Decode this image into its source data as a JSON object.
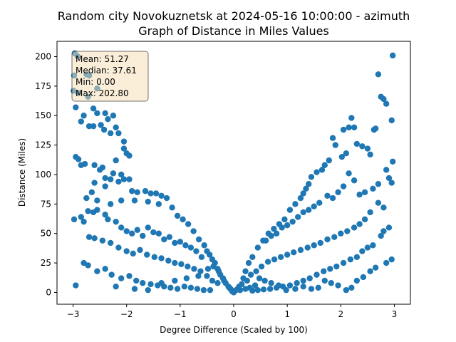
{
  "chart_data": {
    "type": "scatter",
    "title_line1": "Random city Novokuznetsk at 2024-05-16 10:00:00  - azimuth",
    "title_line2": "Graph of Distance in Miles Values",
    "xlabel": "Degree Difference (Scaled by 100)",
    "ylabel": "Distance (Miles)",
    "xlim": [
      -3.3,
      3.3
    ],
    "ylim": [
      -10,
      213
    ],
    "xticks": [
      -3,
      -2,
      -1,
      0,
      1,
      2,
      3
    ],
    "yticks": [
      0,
      25,
      50,
      75,
      100,
      125,
      150,
      175,
      200
    ],
    "point_color": "#1f77b4",
    "stats": {
      "mean": "Mean: 51.27",
      "median": "Median: 37.61",
      "min": "Min: 0.00",
      "max": "Max: 202.80"
    },
    "points": [
      [
        -2.97,
        202.8
      ],
      [
        -2.92,
        200.5
      ],
      [
        -2.98,
        184
      ],
      [
        -2.75,
        185
      ],
      [
        -2.7,
        184
      ],
      [
        -2.55,
        173
      ],
      [
        -2.99,
        171
      ],
      [
        -2.9,
        169
      ],
      [
        -2.72,
        166
      ],
      [
        -2.62,
        156
      ],
      [
        -2.55,
        152
      ],
      [
        -2.4,
        152
      ],
      [
        -2.25,
        150
      ],
      [
        -2.35,
        147
      ],
      [
        -2.85,
        145
      ],
      [
        -2.7,
        141
      ],
      [
        -2.62,
        141
      ],
      [
        -2.42,
        138
      ],
      [
        -2.3,
        135
      ],
      [
        -2.15,
        135
      ],
      [
        -2.05,
        128
      ],
      [
        -2.05,
        122
      ],
      [
        -1.95,
        116
      ],
      [
        -2.95,
        157
      ],
      [
        -2.8,
        150
      ],
      [
        -2.48,
        142
      ],
      [
        -2.2,
        140
      ],
      [
        -2.0,
        118
      ],
      [
        -2.9,
        113
      ],
      [
        -2.95,
        115
      ],
      [
        -2.78,
        109
      ],
      [
        -2.85,
        108
      ],
      [
        -2.6,
        108
      ],
      [
        -2.45,
        106
      ],
      [
        -2.2,
        112
      ],
      [
        -2.5,
        104
      ],
      [
        -2.25,
        101
      ],
      [
        -2.1,
        100
      ],
      [
        -1.95,
        96
      ],
      [
        -2.4,
        97
      ],
      [
        -2.3,
        96
      ],
      [
        -2.6,
        93
      ],
      [
        -2.65,
        85
      ],
      [
        -2.4,
        90
      ],
      [
        -2.15,
        94
      ],
      [
        -2.05,
        96
      ],
      [
        -1.9,
        86
      ],
      [
        -1.8,
        85
      ],
      [
        -1.65,
        86
      ],
      [
        -1.55,
        84
      ],
      [
        -1.45,
        84
      ],
      [
        -1.35,
        82
      ],
      [
        -1.25,
        80
      ],
      [
        -2.75,
        80
      ],
      [
        -2.55,
        78
      ],
      [
        -2.3,
        75
      ],
      [
        -2.1,
        78
      ],
      [
        -1.85,
        78
      ],
      [
        -1.6,
        77
      ],
      [
        -1.4,
        75
      ],
      [
        -1.15,
        72
      ],
      [
        -1.05,
        65
      ],
      [
        -0.95,
        62
      ],
      [
        -0.85,
        58
      ],
      [
        -0.75,
        52
      ],
      [
        -0.65,
        45
      ],
      [
        -0.55,
        40
      ],
      [
        -0.5,
        35
      ],
      [
        -0.45,
        32
      ],
      [
        -0.4,
        28
      ],
      [
        -0.35,
        25
      ],
      [
        -0.3,
        20
      ],
      [
        -0.25,
        15
      ],
      [
        -0.2,
        12
      ],
      [
        -0.15,
        8
      ],
      [
        -0.1,
        5
      ],
      [
        -0.06,
        3
      ],
      [
        -0.03,
        1
      ],
      [
        0.0,
        0
      ],
      [
        0.03,
        1.5
      ],
      [
        0.06,
        2.5
      ],
      [
        0.1,
        5
      ],
      [
        0.15,
        7
      ],
      [
        -2.98,
        62
      ],
      [
        -2.85,
        64
      ],
      [
        -2.8,
        60
      ],
      [
        -2.72,
        69
      ],
      [
        -2.62,
        68
      ],
      [
        -2.55,
        70
      ],
      [
        -2.4,
        66
      ],
      [
        -2.35,
        62
      ],
      [
        -2.2,
        60
      ],
      [
        -2.1,
        55
      ],
      [
        -2.0,
        52
      ],
      [
        -1.9,
        50
      ],
      [
        -1.8,
        53
      ],
      [
        -1.7,
        48
      ],
      [
        -1.6,
        55
      ],
      [
        -1.5,
        51
      ],
      [
        -1.4,
        50
      ],
      [
        -1.3,
        45
      ],
      [
        -1.2,
        47
      ],
      [
        -1.1,
        42
      ],
      [
        -1.0,
        43
      ],
      [
        -0.9,
        40
      ],
      [
        -0.8,
        38
      ],
      [
        -0.7,
        35
      ],
      [
        -0.6,
        30
      ],
      [
        -2.7,
        47
      ],
      [
        -2.6,
        46
      ],
      [
        -2.45,
        44
      ],
      [
        -2.3,
        42
      ],
      [
        -2.15,
        38
      ],
      [
        -2.0,
        35
      ],
      [
        -1.88,
        33
      ],
      [
        -1.75,
        36
      ],
      [
        -1.62,
        32
      ],
      [
        -1.48,
        30
      ],
      [
        -1.35,
        29
      ],
      [
        -1.22,
        27
      ],
      [
        -1.1,
        25
      ],
      [
        -0.98,
        24
      ],
      [
        -0.86,
        22
      ],
      [
        -0.74,
        20
      ],
      [
        -0.62,
        18
      ],
      [
        -0.5,
        14
      ],
      [
        -0.4,
        10
      ],
      [
        -0.3,
        8
      ],
      [
        -2.8,
        25
      ],
      [
        -2.72,
        23
      ],
      [
        -2.55,
        18
      ],
      [
        -2.4,
        20
      ],
      [
        -2.28,
        15
      ],
      [
        -2.1,
        12
      ],
      [
        -1.95,
        14
      ],
      [
        -1.82,
        10
      ],
      [
        -1.7,
        8
      ],
      [
        -1.55,
        7
      ],
      [
        -1.42,
        6
      ],
      [
        -1.3,
        5
      ],
      [
        -1.18,
        4
      ],
      [
        -1.05,
        3
      ],
      [
        -0.92,
        5
      ],
      [
        -0.8,
        4
      ],
      [
        -0.68,
        3
      ],
      [
        -0.56,
        2
      ],
      [
        -0.44,
        2
      ],
      [
        -2.95,
        6
      ],
      [
        -2.2,
        5
      ],
      [
        -1.85,
        3
      ],
      [
        -1.6,
        2
      ],
      [
        -1.35,
        8
      ],
      [
        -1.1,
        10
      ],
      [
        -0.88,
        12
      ],
      [
        -0.66,
        14
      ],
      [
        -0.48,
        20
      ],
      [
        -0.38,
        22
      ],
      [
        -0.28,
        18
      ],
      [
        -0.18,
        10
      ],
      [
        -0.08,
        4
      ],
      [
        2.97,
        201
      ],
      [
        2.7,
        185
      ],
      [
        2.75,
        166
      ],
      [
        2.8,
        164
      ],
      [
        2.85,
        160
      ],
      [
        2.95,
        146
      ],
      [
        2.62,
        138
      ],
      [
        2.65,
        139
      ],
      [
        2.2,
        148
      ],
      [
        2.15,
        140
      ],
      [
        2.25,
        140
      ],
      [
        2.05,
        138
      ],
      [
        1.85,
        131
      ],
      [
        1.9,
        125
      ],
      [
        2.3,
        126
      ],
      [
        2.4,
        124
      ],
      [
        2.5,
        122
      ],
      [
        2.55,
        117
      ],
      [
        2.1,
        118
      ],
      [
        2.02,
        115
      ],
      [
        1.78,
        112
      ],
      [
        1.7,
        108
      ],
      [
        1.65,
        104
      ],
      [
        1.55,
        102
      ],
      [
        1.45,
        98
      ],
      [
        1.4,
        92
      ],
      [
        1.35,
        88
      ],
      [
        1.3,
        84
      ],
      [
        1.25,
        80
      ],
      [
        1.15,
        75
      ],
      [
        1.05,
        70
      ],
      [
        0.95,
        62
      ],
      [
        0.85,
        58
      ],
      [
        0.75,
        54
      ],
      [
        0.65,
        50
      ],
      [
        0.55,
        44
      ],
      [
        0.45,
        38
      ],
      [
        0.35,
        30
      ],
      [
        0.28,
        25
      ],
      [
        0.22,
        18
      ],
      [
        0.18,
        12
      ],
      [
        2.97,
        111
      ],
      [
        2.85,
        104
      ],
      [
        2.9,
        97
      ],
      [
        2.95,
        93
      ],
      [
        2.7,
        92
      ],
      [
        2.6,
        88
      ],
      [
        2.45,
        85
      ],
      [
        2.35,
        83
      ],
      [
        2.25,
        95
      ],
      [
        2.15,
        101
      ],
      [
        2.05,
        90
      ],
      [
        1.95,
        85
      ],
      [
        1.85,
        80
      ],
      [
        1.75,
        82
      ],
      [
        1.6,
        76
      ],
      [
        1.5,
        73
      ],
      [
        1.4,
        70
      ],
      [
        1.3,
        68
      ],
      [
        1.2,
        64
      ],
      [
        1.1,
        60
      ],
      [
        1.0,
        57
      ],
      [
        0.9,
        55
      ],
      [
        0.8,
        50
      ],
      [
        0.7,
        48
      ],
      [
        0.6,
        44
      ],
      [
        2.8,
        72
      ],
      [
        2.7,
        76
      ],
      [
        2.55,
        68
      ],
      [
        2.45,
        62
      ],
      [
        2.35,
        58
      ],
      [
        2.25,
        55
      ],
      [
        2.12,
        52
      ],
      [
        2.0,
        50
      ],
      [
        1.88,
        47
      ],
      [
        1.75,
        45
      ],
      [
        1.62,
        42
      ],
      [
        1.5,
        40
      ],
      [
        1.38,
        38
      ],
      [
        1.25,
        36
      ],
      [
        1.12,
        34
      ],
      [
        1.0,
        32
      ],
      [
        0.88,
        30
      ],
      [
        0.76,
        28
      ],
      [
        0.64,
        26
      ],
      [
        0.52,
        22
      ],
      [
        0.42,
        18
      ],
      [
        0.32,
        15
      ],
      [
        0.25,
        10
      ],
      [
        2.9,
        55
      ],
      [
        2.8,
        52
      ],
      [
        2.75,
        48
      ],
      [
        2.6,
        40
      ],
      [
        2.5,
        38
      ],
      [
        2.4,
        35
      ],
      [
        2.3,
        30
      ],
      [
        2.18,
        28
      ],
      [
        2.05,
        25
      ],
      [
        1.92,
        22
      ],
      [
        1.8,
        20
      ],
      [
        1.68,
        18
      ],
      [
        1.55,
        15
      ],
      [
        1.42,
        12
      ],
      [
        1.3,
        10
      ],
      [
        1.18,
        8
      ],
      [
        1.05,
        6
      ],
      [
        0.92,
        5
      ],
      [
        0.8,
        4
      ],
      [
        0.68,
        3
      ],
      [
        0.56,
        2.5
      ],
      [
        0.45,
        2
      ],
      [
        0.35,
        1.5
      ],
      [
        2.95,
        28
      ],
      [
        2.85,
        25
      ],
      [
        2.65,
        21
      ],
      [
        2.55,
        18
      ],
      [
        2.42,
        13
      ],
      [
        2.3,
        10
      ],
      [
        2.2,
        4
      ],
      [
        2.1,
        2
      ],
      [
        1.95,
        6
      ],
      [
        1.82,
        8
      ],
      [
        1.7,
        10
      ],
      [
        1.58,
        4
      ],
      [
        1.45,
        3
      ],
      [
        1.3,
        5
      ],
      [
        1.15,
        3
      ],
      [
        0.98,
        2
      ],
      [
        0.84,
        6
      ],
      [
        0.7,
        8
      ],
      [
        0.58,
        10
      ],
      [
        0.48,
        12
      ],
      [
        0.4,
        6
      ],
      [
        0.3,
        4
      ],
      [
        0.22,
        3
      ],
      [
        0.12,
        2
      ]
    ]
  }
}
